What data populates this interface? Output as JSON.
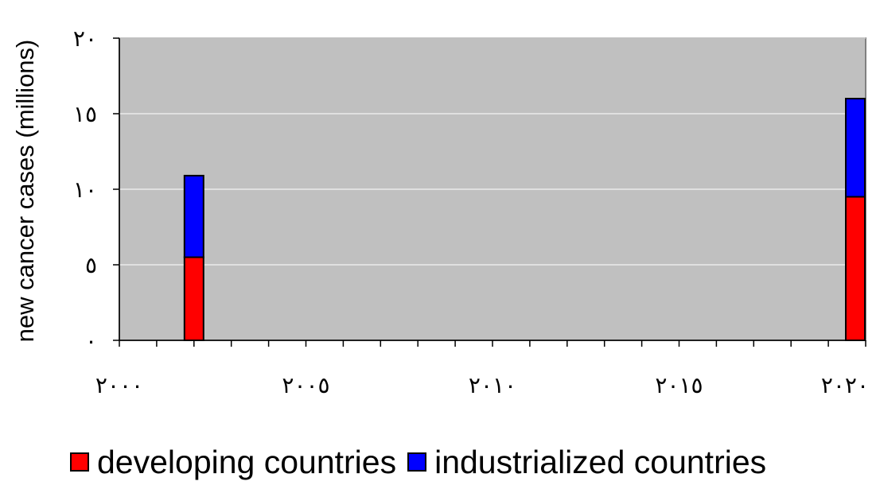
{
  "chart_data": {
    "type": "bar",
    "stacked": true,
    "ylabel": "new cancer cases (millions)",
    "xlabel": "",
    "ylim": [
      0,
      20
    ],
    "xlim": [
      2000,
      2020
    ],
    "y_ticks": [
      0,
      5,
      10,
      15,
      20
    ],
    "y_tick_labels": [
      "٠",
      "٥",
      "١٠",
      "١٥",
      "٢٠"
    ],
    "x_ticks": [
      2000,
      2005,
      2010,
      2015,
      2020
    ],
    "x_tick_labels": [
      "٢٠٠٠",
      "٢٠٠٥",
      "٢٠١٠",
      "٢٠١٥",
      "٢٠٢٠"
    ],
    "x": [
      2002,
      2020
    ],
    "series": [
      {
        "name": "developing countries",
        "values": [
          5.5,
          9.5
        ],
        "color": "#ff0000"
      },
      {
        "name": "industrialized countries",
        "values": [
          5.4,
          6.5
        ],
        "color": "#0000ff"
      }
    ],
    "plot_background": "#c0c0c0",
    "grid": true,
    "legend_position": "bottom"
  },
  "legend": {
    "items": [
      {
        "label": "developing countries",
        "color": "#ff0000"
      },
      {
        "label": "industrialized countries",
        "color": "#0000ff"
      }
    ]
  }
}
